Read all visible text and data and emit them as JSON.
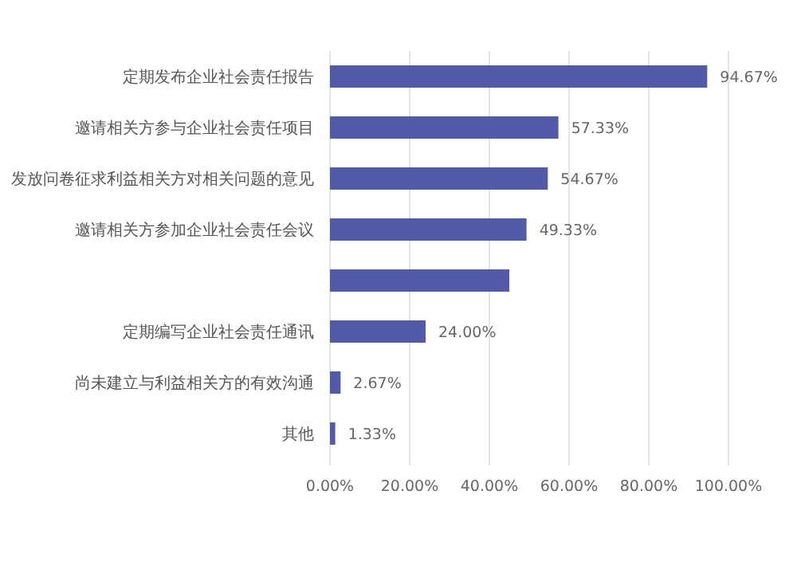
{
  "chart_data": {
    "type": "bar",
    "orientation": "horizontal",
    "categories": [
      "定期发布企业社会责任报告",
      "邀请相关方参与企业社会责任项目",
      "发放问卷征求利益相关方对相关问题的意见",
      "邀请相关方参加企业社会责任会议",
      null,
      "定期编写企业社会责任通讯",
      "尚未建立与利益相关方的有效沟通",
      "其他"
    ],
    "values": [
      94.67,
      57.33,
      54.67,
      49.33,
      45,
      24.0,
      2.67,
      1.33
    ],
    "value_labels": [
      "94.67%",
      "57.33%",
      "54.67%",
      "49.33%",
      null,
      "24.00%",
      "2.67%",
      "1.33%"
    ],
    "color": "#535ba8",
    "xlim": [
      0,
      100
    ],
    "xticks": [
      {
        "value": 0,
        "label": "0.00%"
      },
      {
        "value": 20,
        "label": "20.00%"
      },
      {
        "value": 40,
        "label": "40.00%"
      },
      {
        "value": 60,
        "label": "60.00%"
      },
      {
        "value": 80,
        "label": "80.00%"
      },
      {
        "value": 100,
        "label": "100.00%"
      }
    ],
    "grid": "x"
  }
}
